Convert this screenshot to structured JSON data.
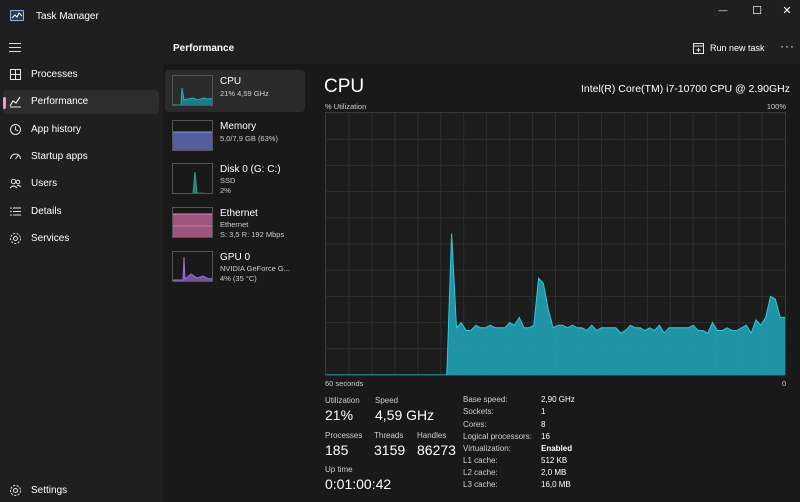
{
  "window": {
    "title": "Task Manager",
    "minimize": "—",
    "maximize": "☐",
    "close": "✕"
  },
  "sidebar": {
    "items": [
      {
        "label": "Processes",
        "icon": "processes-icon"
      },
      {
        "label": "Performance",
        "icon": "performance-icon"
      },
      {
        "label": "App history",
        "icon": "history-icon"
      },
      {
        "label": "Startup apps",
        "icon": "startup-icon"
      },
      {
        "label": "Users",
        "icon": "users-icon"
      },
      {
        "label": "Details",
        "icon": "details-icon"
      },
      {
        "label": "Services",
        "icon": "services-icon"
      }
    ],
    "settings_label": "Settings"
  },
  "header": {
    "title": "Performance",
    "run_task_label": "Run new task",
    "more_label": "···"
  },
  "resources": [
    {
      "name": "CPU",
      "lines": [
        "21% 4,59 GHz"
      ],
      "color": "#16b3c4"
    },
    {
      "name": "Memory",
      "lines": [
        "5,0/7,9 GB (63%)"
      ],
      "color": "#6d7ad6"
    },
    {
      "name": "Disk 0 (G: C:)",
      "lines": [
        "SSD",
        "2%"
      ],
      "color": "#2aa58a"
    },
    {
      "name": "Ethernet",
      "lines": [
        "Ethernet",
        "S: 3,5 R: 192 Mbps"
      ],
      "color": "#d66fa8"
    },
    {
      "name": "GPU 0",
      "lines": [
        "NVIDIA GeForce G...",
        "4% (35 °C)"
      ],
      "color": "#9a6fd6"
    }
  ],
  "cpu_panel": {
    "title": "CPU",
    "model": "Intel(R) Core(TM) i7-10700 CPU @ 2.90GHz",
    "y_label": "% Utilization",
    "y_max_label": "100%",
    "x_left_label": "60 seconds",
    "x_right_label": "0",
    "fill_color": "#1fa9bc",
    "utilization_series": [
      0,
      0,
      0,
      0,
      0,
      0,
      0,
      0,
      0,
      0,
      0,
      0,
      0,
      0,
      0,
      0,
      0,
      0,
      0,
      0,
      0,
      0,
      0,
      0,
      0,
      0,
      54,
      18,
      20,
      17,
      17,
      19,
      18,
      18,
      19,
      18,
      18,
      18,
      20,
      19,
      22,
      18,
      18,
      19,
      37,
      35,
      25,
      18,
      19,
      19,
      18,
      19,
      18,
      18,
      17,
      19,
      17,
      18,
      18,
      18,
      18,
      16,
      17,
      19,
      18,
      18,
      17,
      18,
      17,
      19,
      16,
      18,
      18,
      18,
      18,
      18,
      19,
      17,
      17,
      16,
      20,
      17,
      17,
      18,
      17,
      17,
      18,
      19,
      16,
      21,
      19,
      22,
      30,
      29,
      22,
      22
    ]
  },
  "stats": {
    "utilization_label": "Utilization",
    "utilization_value": "21%",
    "speed_label": "Speed",
    "speed_value": "4,59 GHz",
    "processes_label": "Processes",
    "processes_value": "185",
    "threads_label": "Threads",
    "threads_value": "3159",
    "handles_label": "Handles",
    "handles_value": "86273",
    "uptime_label": "Up time",
    "uptime_value": "0:01:00:42"
  },
  "details": [
    {
      "label": "Base speed:",
      "value": "2,90 GHz"
    },
    {
      "label": "Sockets:",
      "value": "1"
    },
    {
      "label": "Cores:",
      "value": "8"
    },
    {
      "label": "Logical processors:",
      "value": "16"
    },
    {
      "label": "Virtualization:",
      "value": "Enabled"
    },
    {
      "label": "L1 cache:",
      "value": "512 KB"
    },
    {
      "label": "L2 cache:",
      "value": "2,0 MB"
    },
    {
      "label": "L3 cache:",
      "value": "16,0 MB"
    }
  ]
}
